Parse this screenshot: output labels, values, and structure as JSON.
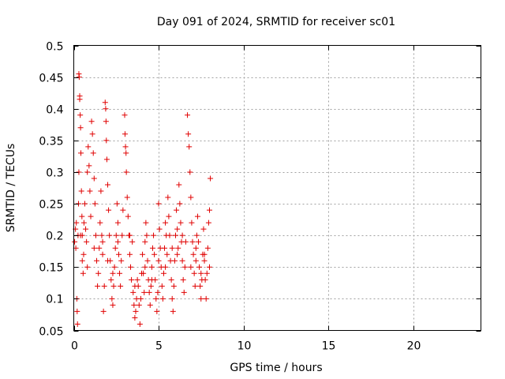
{
  "chart_data": {
    "type": "scatter",
    "title": "Day 091 of 2024, SRMTID for receiver sc01",
    "xlabel": "GPS time / hours",
    "ylabel": "SRMTID / TECUs",
    "xlim": [
      0,
      24
    ],
    "ylim": [
      0.05,
      0.5
    ],
    "xticks": [
      0,
      5,
      10,
      15,
      20
    ],
    "xtick_labels": [
      "0",
      "5",
      "10",
      "15",
      "20"
    ],
    "yticks": [
      0.05,
      0.1,
      0.15,
      0.2,
      0.25,
      0.3,
      0.35,
      0.4,
      0.45,
      0.5
    ],
    "ytick_labels": [
      "0.05",
      "0.1",
      "0.15",
      "0.2",
      "0.25",
      "0.3",
      "0.35",
      "0.4",
      "0.45",
      "0.5"
    ],
    "grid": true,
    "marker": "plus",
    "color": "#e00000",
    "series": [
      {
        "name": "sc01",
        "points": [
          [
            0.05,
            0.19
          ],
          [
            0.1,
            0.21
          ],
          [
            0.12,
            0.18
          ],
          [
            0.15,
            0.22
          ],
          [
            0.18,
            0.1
          ],
          [
            0.2,
            0.08
          ],
          [
            0.22,
            0.06
          ],
          [
            0.25,
            0.2
          ],
          [
            0.28,
            0.25
          ],
          [
            0.3,
            0.3
          ],
          [
            0.3,
            0.455
          ],
          [
            0.32,
            0.45
          ],
          [
            0.35,
            0.42
          ],
          [
            0.35,
            0.415
          ],
          [
            0.38,
            0.39
          ],
          [
            0.4,
            0.37
          ],
          [
            0.42,
            0.33
          ],
          [
            0.45,
            0.27
          ],
          [
            0.48,
            0.23
          ],
          [
            0.5,
            0.2
          ],
          [
            0.5,
            0.16
          ],
          [
            0.55,
            0.14
          ],
          [
            0.58,
            0.17
          ],
          [
            0.6,
            0.22
          ],
          [
            0.65,
            0.25
          ],
          [
            0.7,
            0.21
          ],
          [
            0.75,
            0.19
          ],
          [
            0.8,
            0.3
          ],
          [
            0.85,
            0.34
          ],
          [
            0.9,
            0.31
          ],
          [
            0.95,
            0.27
          ],
          [
            1.0,
            0.23
          ],
          [
            1.05,
            0.38
          ],
          [
            1.1,
            0.36
          ],
          [
            1.15,
            0.33
          ],
          [
            1.2,
            0.29
          ],
          [
            1.25,
            0.25
          ],
          [
            1.3,
            0.2
          ],
          [
            1.35,
            0.16
          ],
          [
            1.4,
            0.12
          ],
          [
            1.45,
            0.14
          ],
          [
            1.5,
            0.18
          ],
          [
            1.55,
            0.22
          ],
          [
            1.6,
            0.27
          ],
          [
            1.65,
            0.2
          ],
          [
            1.7,
            0.17
          ],
          [
            1.75,
            0.08
          ],
          [
            1.8,
            0.12
          ],
          [
            1.85,
            0.41
          ],
          [
            1.88,
            0.4
          ],
          [
            1.9,
            0.38
          ],
          [
            1.92,
            0.35
          ],
          [
            1.95,
            0.32
          ],
          [
            2.0,
            0.28
          ],
          [
            2.05,
            0.24
          ],
          [
            2.1,
            0.2
          ],
          [
            2.15,
            0.16
          ],
          [
            2.2,
            0.13
          ],
          [
            2.25,
            0.1
          ],
          [
            2.3,
            0.09
          ],
          [
            2.35,
            0.12
          ],
          [
            2.4,
            0.15
          ],
          [
            2.45,
            0.18
          ],
          [
            2.5,
            0.2
          ],
          [
            2.55,
            0.25
          ],
          [
            2.6,
            0.22
          ],
          [
            2.65,
            0.17
          ],
          [
            2.7,
            0.14
          ],
          [
            2.75,
            0.12
          ],
          [
            2.8,
            0.16
          ],
          [
            2.85,
            0.2
          ],
          [
            2.9,
            0.24
          ],
          [
            3.0,
            0.39
          ],
          [
            3.02,
            0.36
          ],
          [
            3.05,
            0.34
          ],
          [
            3.08,
            0.33
          ],
          [
            3.1,
            0.3
          ],
          [
            3.15,
            0.26
          ],
          [
            3.2,
            0.23
          ],
          [
            3.25,
            0.2
          ],
          [
            3.3,
            0.17
          ],
          [
            3.35,
            0.15
          ],
          [
            3.4,
            0.13
          ],
          [
            3.45,
            0.19
          ],
          [
            3.5,
            0.11
          ],
          [
            3.55,
            0.09
          ],
          [
            3.6,
            0.07
          ],
          [
            3.65,
            0.08
          ],
          [
            3.7,
            0.1
          ],
          [
            3.75,
            0.13
          ],
          [
            3.8,
            0.12
          ],
          [
            3.85,
            0.09
          ],
          [
            3.9,
            0.06
          ],
          [
            3.95,
            0.1
          ],
          [
            4.0,
            0.14
          ],
          [
            4.05,
            0.17
          ],
          [
            4.1,
            0.14
          ],
          [
            4.15,
            0.11
          ],
          [
            4.2,
            0.19
          ],
          [
            4.25,
            0.22
          ],
          [
            4.3,
            0.2
          ],
          [
            4.35,
            0.16
          ],
          [
            4.4,
            0.13
          ],
          [
            4.45,
            0.11
          ],
          [
            4.5,
            0.09
          ],
          [
            4.55,
            0.12
          ],
          [
            4.6,
            0.15
          ],
          [
            4.65,
            0.18
          ],
          [
            4.7,
            0.2
          ],
          [
            4.75,
            0.17
          ],
          [
            4.8,
            0.13
          ],
          [
            4.85,
            0.1
          ],
          [
            4.9,
            0.08
          ],
          [
            4.95,
            0.11
          ],
          [
            5.0,
            0.25
          ],
          [
            5.05,
            0.21
          ],
          [
            5.1,
            0.18
          ],
          [
            5.15,
            0.15
          ],
          [
            5.2,
            0.12
          ],
          [
            5.25,
            0.1
          ],
          [
            5.3,
            0.14
          ],
          [
            5.35,
            0.18
          ],
          [
            5.4,
            0.22
          ],
          [
            5.45,
            0.2
          ],
          [
            5.5,
            0.17
          ],
          [
            5.55,
            0.26
          ],
          [
            5.6,
            0.23
          ],
          [
            5.65,
            0.2
          ],
          [
            5.7,
            0.16
          ],
          [
            5.75,
            0.13
          ],
          [
            5.8,
            0.1
          ],
          [
            5.85,
            0.08
          ],
          [
            5.9,
            0.12
          ],
          [
            5.95,
            0.16
          ],
          [
            6.0,
            0.2
          ],
          [
            6.05,
            0.24
          ],
          [
            6.1,
            0.21
          ],
          [
            6.15,
            0.18
          ],
          [
            6.2,
            0.28
          ],
          [
            6.25,
            0.25
          ],
          [
            6.3,
            0.22
          ],
          [
            6.35,
            0.19
          ],
          [
            6.4,
            0.16
          ],
          [
            6.45,
            0.13
          ],
          [
            6.5,
            0.11
          ],
          [
            6.55,
            0.15
          ],
          [
            6.6,
            0.19
          ],
          [
            6.7,
            0.39
          ],
          [
            6.75,
            0.36
          ],
          [
            6.8,
            0.34
          ],
          [
            6.85,
            0.3
          ],
          [
            6.9,
            0.26
          ],
          [
            6.95,
            0.22
          ],
          [
            7.0,
            0.19
          ],
          [
            7.05,
            0.17
          ],
          [
            7.1,
            0.14
          ],
          [
            7.15,
            0.12
          ],
          [
            7.2,
            0.16
          ],
          [
            7.25,
            0.2
          ],
          [
            7.3,
            0.23
          ],
          [
            7.35,
            0.19
          ],
          [
            7.4,
            0.15
          ],
          [
            7.45,
            0.12
          ],
          [
            7.5,
            0.1
          ],
          [
            7.55,
            0.13
          ],
          [
            7.6,
            0.17
          ],
          [
            7.65,
            0.21
          ],
          [
            7.7,
            0.17
          ],
          [
            7.75,
            0.13
          ],
          [
            7.8,
            0.1
          ],
          [
            7.85,
            0.14
          ],
          [
            7.9,
            0.18
          ],
          [
            7.95,
            0.22
          ],
          [
            8.0,
            0.24
          ],
          [
            8.05,
            0.29
          ],
          [
            8.0,
            0.15
          ],
          [
            0.4,
            0.2
          ],
          [
            1.2,
            0.18
          ],
          [
            2.0,
            0.16
          ],
          [
            2.6,
            0.19
          ],
          [
            3.3,
            0.2
          ],
          [
            4.2,
            0.15
          ],
          [
            5.0,
            0.16
          ],
          [
            5.8,
            0.18
          ],
          [
            6.4,
            0.2
          ],
          [
            7.2,
            0.18
          ],
          [
            7.7,
            0.16
          ],
          [
            0.8,
            0.15
          ],
          [
            1.7,
            0.19
          ],
          [
            2.3,
            0.14
          ],
          [
            3.6,
            0.12
          ],
          [
            4.6,
            0.13
          ],
          [
            5.4,
            0.15
          ],
          [
            6.1,
            0.17
          ],
          [
            6.9,
            0.15
          ],
          [
            7.5,
            0.14
          ]
        ]
      }
    ]
  }
}
